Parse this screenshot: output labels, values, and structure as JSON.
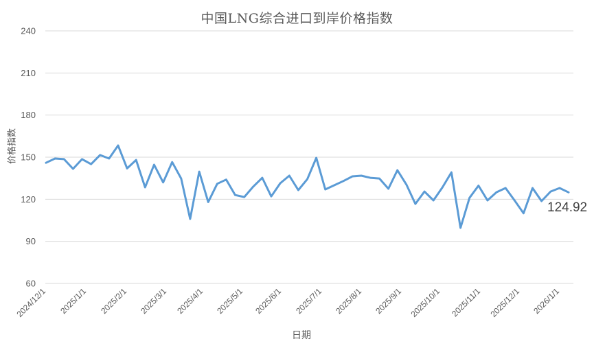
{
  "chart_data": {
    "type": "line",
    "title": "中国LNG综合进口到岸价格指数",
    "xlabel": "日期",
    "ylabel": "价格指数",
    "ylim": [
      60,
      240
    ],
    "yticks": [
      60,
      90,
      120,
      150,
      180,
      210,
      240
    ],
    "grid": true,
    "legend": "none",
    "x_tick_labels": [
      "2024/12/1",
      "2025/1/1",
      "2025/2/1",
      "2025/3/1",
      "2025/4/1",
      "2025/5/1",
      "2025/6/1",
      "2025/7/1",
      "2025/8/1",
      "2025/9/1",
      "2025/10/1",
      "2025/11/1",
      "2025/12/1",
      "2026/1/1"
    ],
    "series": [
      {
        "name": "价格指数",
        "color": "#5b9bd5",
        "values": [
          146,
          149,
          148.6,
          141.7,
          148.6,
          145,
          151.5,
          149,
          158.3,
          142,
          148,
          128.5,
          144.6,
          132,
          146.5,
          134.8,
          106,
          139.7,
          118,
          131,
          134,
          123,
          121.6,
          129,
          135.3,
          122,
          131.4,
          136.8,
          126.5,
          134.3,
          149.5,
          127,
          130,
          133,
          136.3,
          136.8,
          135.3,
          134.8,
          127.5,
          140.7,
          130.5,
          116.7,
          125.5,
          119.2,
          128.5,
          139.2,
          99.6,
          121,
          129.7,
          119.2,
          125,
          128,
          119.2,
          110,
          128,
          118.7,
          125.5,
          128,
          124.92
        ]
      }
    ],
    "annotations": [
      {
        "text": "124.92",
        "target": "last-point"
      }
    ]
  },
  "labels": {
    "title": "中国LNG综合进口到岸价格指数",
    "xlabel": "日期",
    "ylabel": "价格指数",
    "last_value": "124.92"
  }
}
